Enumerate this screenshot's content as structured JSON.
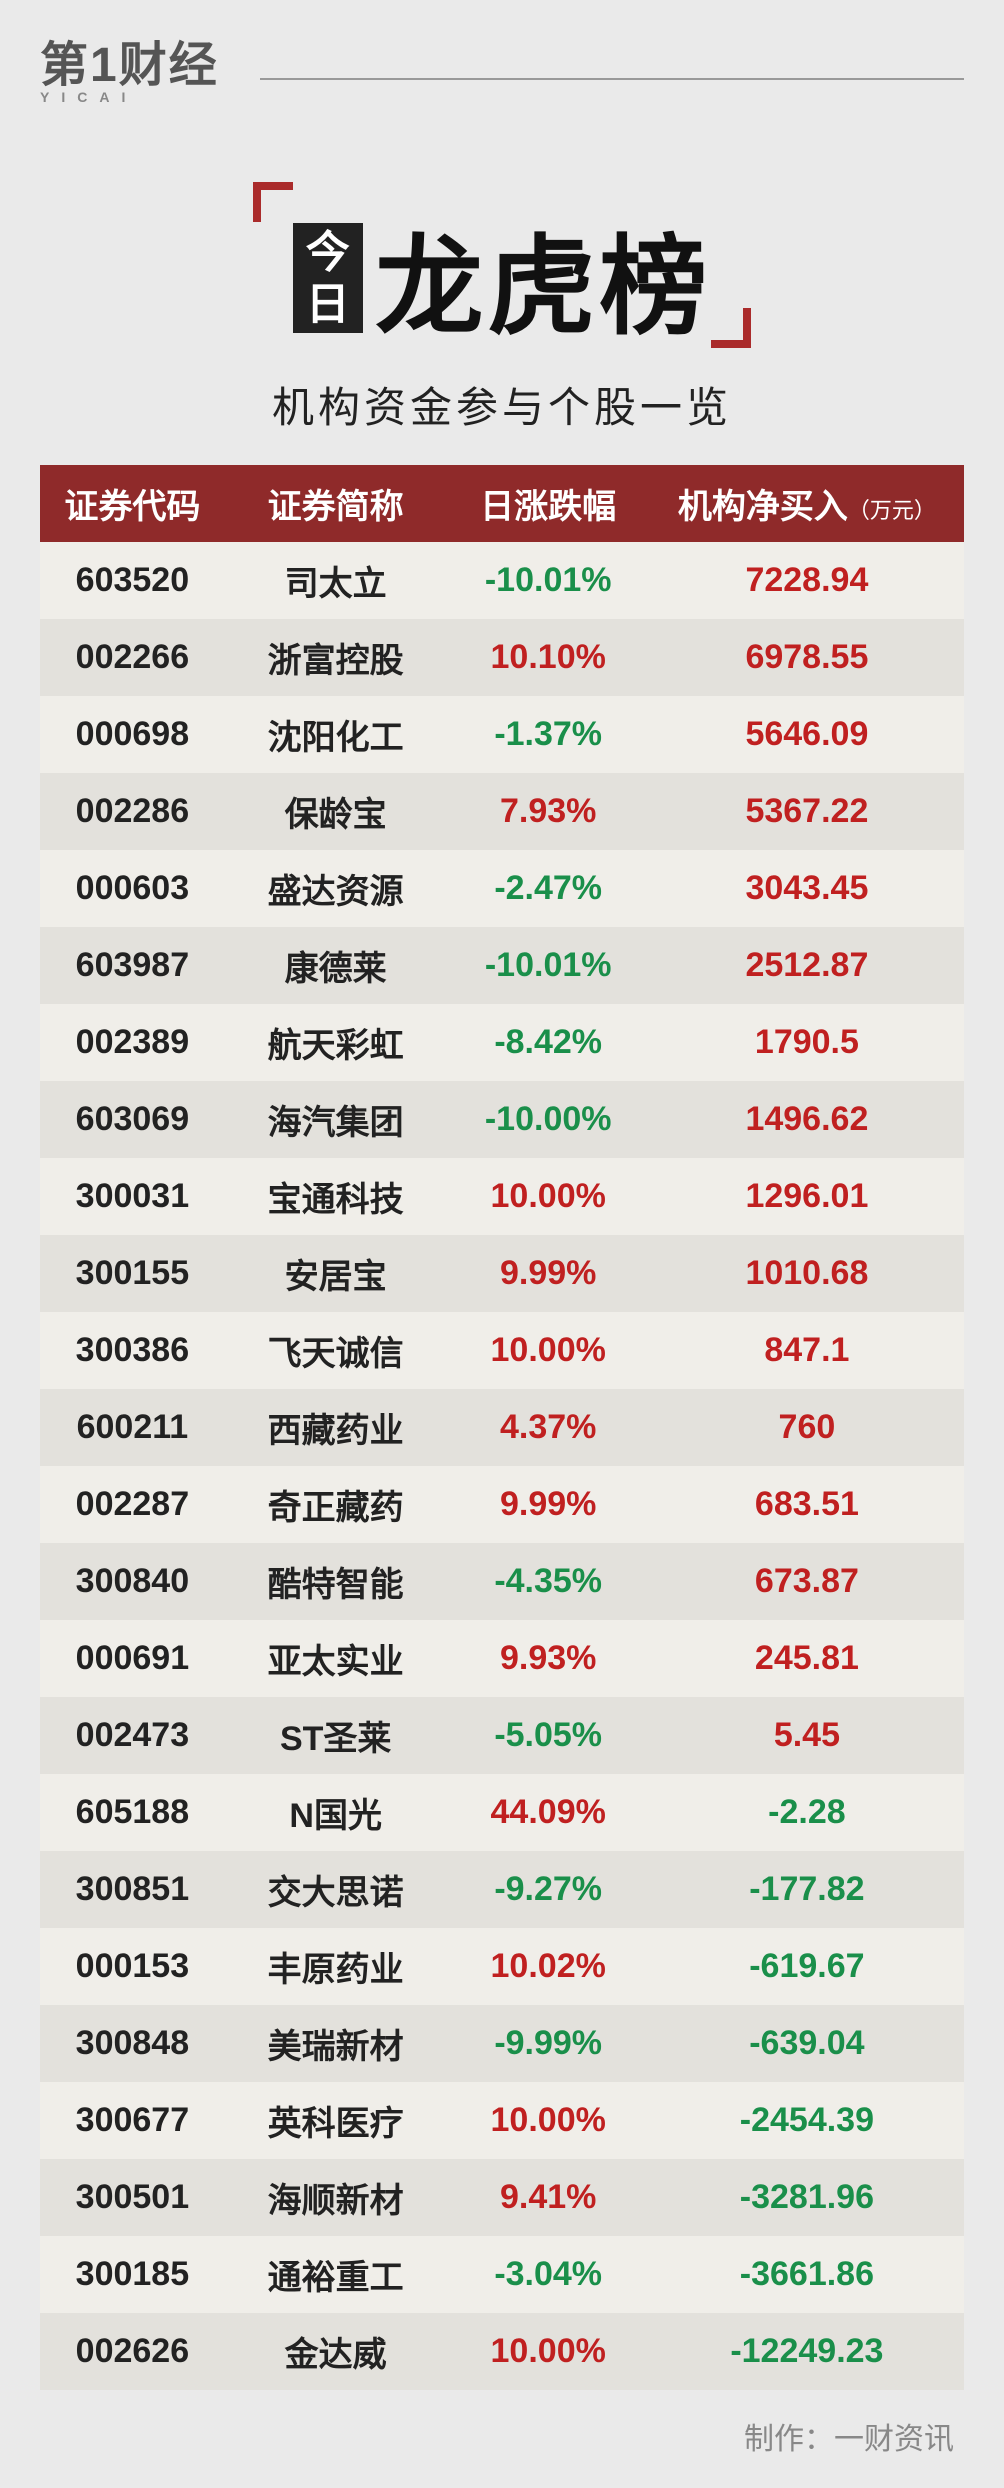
{
  "logo": {
    "main": "第1财经",
    "sub": "YICAI"
  },
  "title": {
    "today_box": "今日",
    "main": "龙虎榜",
    "subtitle": "机构资金参与个股一览"
  },
  "table": {
    "columns": [
      {
        "key": "code",
        "label": "证券代码",
        "class": "col-code"
      },
      {
        "key": "name",
        "label": "证券简称",
        "class": "col-name"
      },
      {
        "key": "change",
        "label": "日涨跌幅",
        "class": "col-change"
      },
      {
        "key": "net",
        "label": "机构净买入",
        "unit": "（万元）",
        "class": "col-net"
      }
    ],
    "rows": [
      {
        "code": "603520",
        "name": "司太立",
        "change": "-10.01%",
        "change_dir": "down",
        "net": "7228.94",
        "net_dir": "up"
      },
      {
        "code": "002266",
        "name": "浙富控股",
        "change": "10.10%",
        "change_dir": "up",
        "net": "6978.55",
        "net_dir": "up"
      },
      {
        "code": "000698",
        "name": "沈阳化工",
        "change": "-1.37%",
        "change_dir": "down",
        "net": "5646.09",
        "net_dir": "up"
      },
      {
        "code": "002286",
        "name": "保龄宝",
        "change": "7.93%",
        "change_dir": "up",
        "net": "5367.22",
        "net_dir": "up"
      },
      {
        "code": "000603",
        "name": "盛达资源",
        "change": "-2.47%",
        "change_dir": "down",
        "net": "3043.45",
        "net_dir": "up"
      },
      {
        "code": "603987",
        "name": "康德莱",
        "change": "-10.01%",
        "change_dir": "down",
        "net": "2512.87",
        "net_dir": "up"
      },
      {
        "code": "002389",
        "name": "航天彩虹",
        "change": "-8.42%",
        "change_dir": "down",
        "net": "1790.5",
        "net_dir": "up"
      },
      {
        "code": "603069",
        "name": "海汽集团",
        "change": "-10.00%",
        "change_dir": "down",
        "net": "1496.62",
        "net_dir": "up"
      },
      {
        "code": "300031",
        "name": "宝通科技",
        "change": "10.00%",
        "change_dir": "up",
        "net": "1296.01",
        "net_dir": "up"
      },
      {
        "code": "300155",
        "name": "安居宝",
        "change": "9.99%",
        "change_dir": "up",
        "net": "1010.68",
        "net_dir": "up"
      },
      {
        "code": "300386",
        "name": "飞天诚信",
        "change": "10.00%",
        "change_dir": "up",
        "net": "847.1",
        "net_dir": "up"
      },
      {
        "code": "600211",
        "name": "西藏药业",
        "change": "4.37%",
        "change_dir": "up",
        "net": "760",
        "net_dir": "up"
      },
      {
        "code": "002287",
        "name": "奇正藏药",
        "change": "9.99%",
        "change_dir": "up",
        "net": "683.51",
        "net_dir": "up"
      },
      {
        "code": "300840",
        "name": "酷特智能",
        "change": "-4.35%",
        "change_dir": "down",
        "net": "673.87",
        "net_dir": "up"
      },
      {
        "code": "000691",
        "name": "亚太实业",
        "change": "9.93%",
        "change_dir": "up",
        "net": "245.81",
        "net_dir": "up"
      },
      {
        "code": "002473",
        "name": "ST圣莱",
        "change": "-5.05%",
        "change_dir": "down",
        "net": "5.45",
        "net_dir": "up"
      },
      {
        "code": "605188",
        "name": "N国光",
        "change": "44.09%",
        "change_dir": "up",
        "net": "-2.28",
        "net_dir": "down"
      },
      {
        "code": "300851",
        "name": "交大思诺",
        "change": "-9.27%",
        "change_dir": "down",
        "net": "-177.82",
        "net_dir": "down"
      },
      {
        "code": "000153",
        "name": "丰原药业",
        "change": "10.02%",
        "change_dir": "up",
        "net": "-619.67",
        "net_dir": "down"
      },
      {
        "code": "300848",
        "name": "美瑞新材",
        "change": "-9.99%",
        "change_dir": "down",
        "net": "-639.04",
        "net_dir": "down"
      },
      {
        "code": "300677",
        "name": "英科医疗",
        "change": "10.00%",
        "change_dir": "up",
        "net": "-2454.39",
        "net_dir": "down"
      },
      {
        "code": "300501",
        "name": "海顺新材",
        "change": "9.41%",
        "change_dir": "up",
        "net": "-3281.96",
        "net_dir": "down"
      },
      {
        "code": "300185",
        "name": "通裕重工",
        "change": "-3.04%",
        "change_dir": "down",
        "net": "-3661.86",
        "net_dir": "down"
      },
      {
        "code": "002626",
        "name": "金达威",
        "change": "10.00%",
        "change_dir": "up",
        "net": "-12249.23",
        "net_dir": "down"
      }
    ]
  },
  "footer": "制作：一财资讯",
  "colors": {
    "header_bg": "#8f2a2a",
    "up": "#c02020",
    "down": "#1a8f4a",
    "row_odd": "#f0eee9",
    "row_even": "#e3e1dc",
    "page_bg": "#eaeaea"
  }
}
